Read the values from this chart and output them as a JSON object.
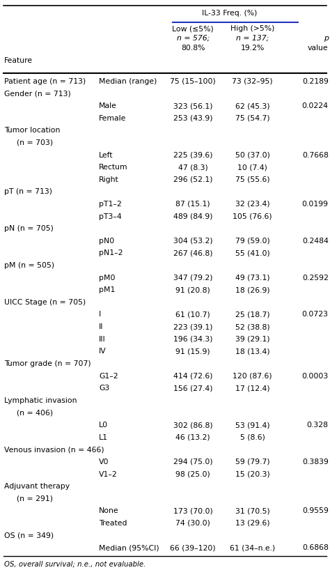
{
  "title_main": "IL-33 Freq. (%)",
  "header_line_color": "#2233bb",
  "bg_color": "#ffffff",
  "font_size": 7.8,
  "footer": "OS, overall survival; n.e., not evaluable.",
  "col_x": {
    "label": 0.012,
    "sub": 0.3,
    "low": 0.585,
    "high": 0.765,
    "p": 0.995
  },
  "rows": [
    {
      "label": "Patient age (n = 713)",
      "sub": "Median (range)",
      "low": "75 (15–100)",
      "high": "73 (32–95)",
      "p": "0.2189",
      "indent2": false
    },
    {
      "label": "Gender (n = 713)",
      "sub": "",
      "low": "",
      "high": "",
      "p": "",
      "indent2": false
    },
    {
      "label": "",
      "sub": "Male",
      "low": "323 (56.1)",
      "high": "62 (45.3)",
      "p": "0.0224",
      "indent2": false
    },
    {
      "label": "",
      "sub": "Female",
      "low": "253 (43.9)",
      "high": "75 (54.7)",
      "p": "",
      "indent2": false
    },
    {
      "label": "Tumor location",
      "sub": "",
      "low": "",
      "high": "",
      "p": "",
      "indent2": false
    },
    {
      "label": "  (n = 703)",
      "sub": "",
      "low": "",
      "high": "",
      "p": "",
      "indent2": true
    },
    {
      "label": "",
      "sub": "Left",
      "low": "225 (39.6)",
      "high": "50 (37.0)",
      "p": "0.7668",
      "indent2": false
    },
    {
      "label": "",
      "sub": "Rectum",
      "low": "47 (8.3)",
      "high": "10 (7.4)",
      "p": "",
      "indent2": false
    },
    {
      "label": "",
      "sub": "Right",
      "low": "296 (52.1)",
      "high": "75 (55.6)",
      "p": "",
      "indent2": false
    },
    {
      "label": "pT (n = 713)",
      "sub": "",
      "low": "",
      "high": "",
      "p": "",
      "indent2": false
    },
    {
      "label": "",
      "sub": "pT1–2",
      "low": "87 (15.1)",
      "high": "32 (23.4)",
      "p": "0.0199",
      "indent2": false
    },
    {
      "label": "",
      "sub": "pT3–4",
      "low": "489 (84.9)",
      "high": "105 (76.6)",
      "p": "",
      "indent2": false
    },
    {
      "label": "pN (n = 705)",
      "sub": "",
      "low": "",
      "high": "",
      "p": "",
      "indent2": false
    },
    {
      "label": "",
      "sub": "pN0",
      "low": "304 (53.2)",
      "high": "79 (59.0)",
      "p": "0.2484",
      "indent2": false
    },
    {
      "label": "",
      "sub": "pN1–2",
      "low": "267 (46.8)",
      "high": "55 (41.0)",
      "p": "",
      "indent2": false
    },
    {
      "label": "pM (n = 505)",
      "sub": "",
      "low": "",
      "high": "",
      "p": "",
      "indent2": false
    },
    {
      "label": "",
      "sub": "pM0",
      "low": "347 (79.2)",
      "high": "49 (73.1)",
      "p": "0.2592",
      "indent2": false
    },
    {
      "label": "",
      "sub": "pM1",
      "low": "91 (20.8)",
      "high": "18 (26.9)",
      "p": "",
      "indent2": false
    },
    {
      "label": "UICC Stage (n = 705)",
      "sub": "",
      "low": "",
      "high": "",
      "p": "",
      "indent2": false
    },
    {
      "label": "",
      "sub": "I",
      "low": "61 (10.7)",
      "high": "25 (18.7)",
      "p": "0.0723",
      "indent2": false
    },
    {
      "label": "",
      "sub": "II",
      "low": "223 (39.1)",
      "high": "52 (38.8)",
      "p": "",
      "indent2": false
    },
    {
      "label": "",
      "sub": "III",
      "low": "196 (34.3)",
      "high": "39 (29.1)",
      "p": "",
      "indent2": false
    },
    {
      "label": "",
      "sub": "IV",
      "low": "91 (15.9)",
      "high": "18 (13.4)",
      "p": "",
      "indent2": false
    },
    {
      "label": "Tumor grade (n = 707)",
      "sub": "",
      "low": "",
      "high": "",
      "p": "",
      "indent2": false
    },
    {
      "label": "",
      "sub": "G1–2",
      "low": "414 (72.6)",
      "high": "120 (87.6)",
      "p": "0.0003",
      "indent2": false
    },
    {
      "label": "",
      "sub": "G3",
      "low": "156 (27.4)",
      "high": "17 (12.4)",
      "p": "",
      "indent2": false
    },
    {
      "label": "Lymphatic invasion",
      "sub": "",
      "low": "",
      "high": "",
      "p": "",
      "indent2": false
    },
    {
      "label": "  (n = 406)",
      "sub": "",
      "low": "",
      "high": "",
      "p": "",
      "indent2": true
    },
    {
      "label": "",
      "sub": "L0",
      "low": "302 (86.8)",
      "high": "53 (91.4)",
      "p": "0.328",
      "indent2": false
    },
    {
      "label": "",
      "sub": "L1",
      "low": "46 (13.2)",
      "high": "5 (8.6)",
      "p": "",
      "indent2": false
    },
    {
      "label": "Venous invasion (n = 466)",
      "sub": "",
      "low": "",
      "high": "",
      "p": "",
      "indent2": false
    },
    {
      "label": "",
      "sub": "V0",
      "low": "294 (75.0)",
      "high": "59 (79.7)",
      "p": "0.3839",
      "indent2": false
    },
    {
      "label": "",
      "sub": "V1–2",
      "low": "98 (25.0)",
      "high": "15 (20.3)",
      "p": "",
      "indent2": false
    },
    {
      "label": "Adjuvant therapy",
      "sub": "",
      "low": "",
      "high": "",
      "p": "",
      "indent2": false
    },
    {
      "label": "  (n = 291)",
      "sub": "",
      "low": "",
      "high": "",
      "p": "",
      "indent2": true
    },
    {
      "label": "",
      "sub": "None",
      "low": "173 (70.0)",
      "high": "31 (70.5)",
      "p": "0.9559",
      "indent2": false
    },
    {
      "label": "",
      "sub": "Treated",
      "low": "74 (30.0)",
      "high": "13 (29.6)",
      "p": "",
      "indent2": false
    },
    {
      "label": "OS (n = 349)",
      "sub": "",
      "low": "",
      "high": "",
      "p": "",
      "indent2": false
    },
    {
      "label": "",
      "sub": "Median (95%CI)",
      "low": "66 (39–120)",
      "high": "61 (34–n.e.)",
      "p": "0.6868",
      "indent2": false
    }
  ]
}
